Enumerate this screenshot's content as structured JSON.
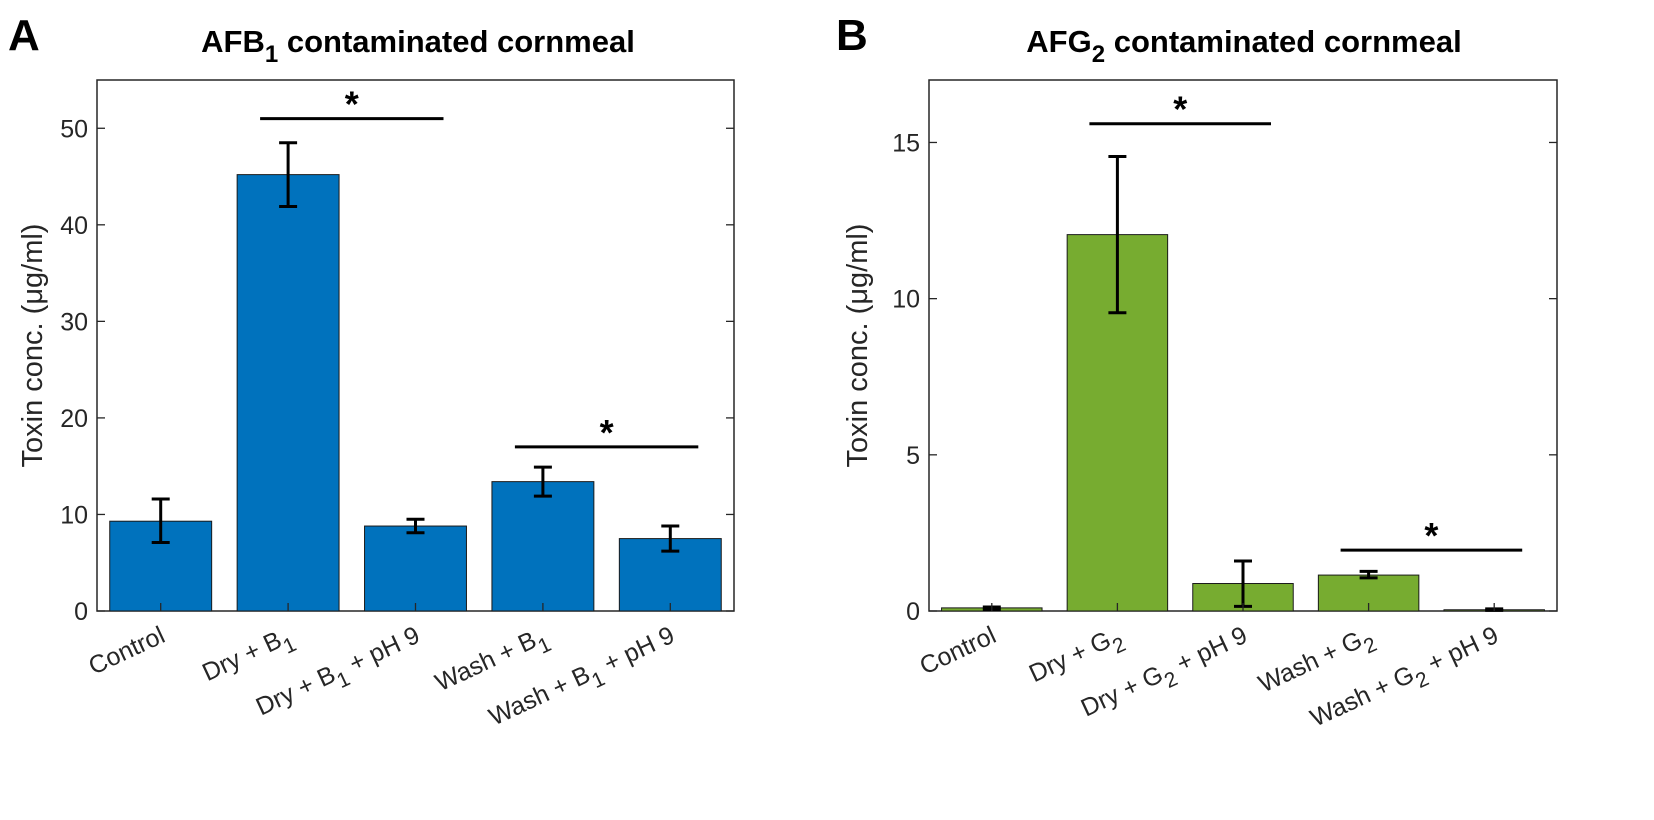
{
  "chart_data": [
    {
      "panel": "A",
      "type": "bar",
      "title_main": "AFB",
      "title_sub": "1",
      "title_rest": " contaminated cornmeal",
      "ylabel": "Toxin conc. (μg/ml)",
      "ylim": [
        0,
        55
      ],
      "yticks": [
        0,
        10,
        20,
        30,
        40,
        50
      ],
      "ytick_labels": [
        "0",
        "10",
        "20",
        "30",
        "40",
        "50"
      ],
      "color": "#0072BD",
      "categories": [
        {
          "main": "Control",
          "sub": "",
          "rest": ""
        },
        {
          "main": "Dry + B",
          "sub": "1",
          "rest": ""
        },
        {
          "main": "Dry + B",
          "sub": "1",
          "rest": " + pH 9"
        },
        {
          "main": "Wash + B",
          "sub": "1",
          "rest": ""
        },
        {
          "main": "Wash + B",
          "sub": "1",
          "rest": " + pH 9"
        }
      ],
      "values": [
        9.3,
        45.2,
        8.8,
        13.4,
        7.5
      ],
      "error_low": [
        7.1,
        41.9,
        8.1,
        11.9,
        6.2
      ],
      "error_high": [
        11.6,
        48.5,
        9.5,
        14.9,
        8.8
      ],
      "significance": [
        {
          "from": 1,
          "to": 2,
          "y": 51.0,
          "label": "*"
        },
        {
          "from": 3,
          "to": 4,
          "y": 17.0,
          "label": "*"
        }
      ]
    },
    {
      "panel": "B",
      "type": "bar",
      "title_main": "AFG",
      "title_sub": "2",
      "title_rest": " contaminated cornmeal",
      "ylabel": "Toxin conc. (μg/ml)",
      "ylim": [
        0,
        17
      ],
      "yticks": [
        0,
        5,
        10,
        15
      ],
      "ytick_labels": [
        "0",
        "5",
        "10",
        "15"
      ],
      "color": "#77AC30",
      "categories": [
        {
          "main": "Control",
          "sub": "",
          "rest": ""
        },
        {
          "main": "Dry + G",
          "sub": "2",
          "rest": ""
        },
        {
          "main": "Dry + G",
          "sub": "2",
          "rest": " + pH 9"
        },
        {
          "main": "Wash + G",
          "sub": "2",
          "rest": ""
        },
        {
          "main": "Wash + G",
          "sub": "2",
          "rest": " + pH 9"
        }
      ],
      "values": [
        0.1,
        12.05,
        0.88,
        1.15,
        0.04
      ],
      "error_low": [
        0.05,
        9.55,
        0.15,
        1.06,
        0.02
      ],
      "error_high": [
        0.13,
        14.55,
        1.6,
        1.27,
        0.07
      ],
      "significance": [
        {
          "from": 1,
          "to": 2,
          "y": 15.6,
          "label": "*"
        },
        {
          "from": 3,
          "to": 4,
          "y": 1.95,
          "label": "*"
        }
      ]
    }
  ]
}
